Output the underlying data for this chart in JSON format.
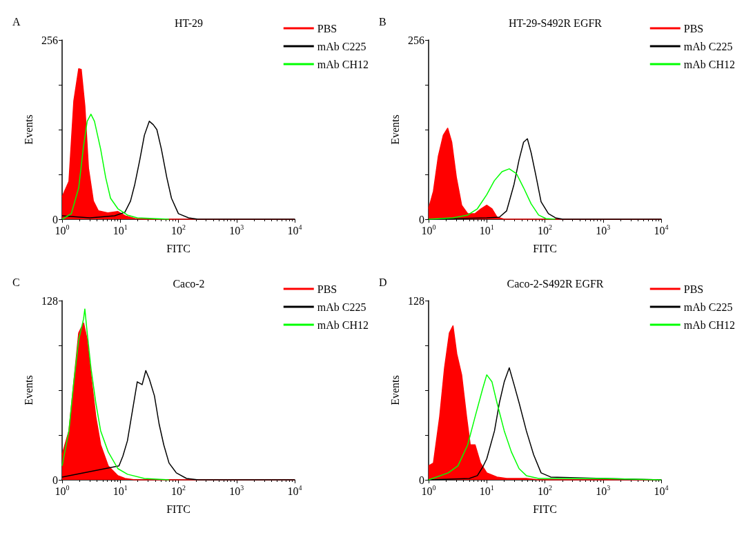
{
  "chart_data": [
    {
      "type": "line",
      "title": "HT-29",
      "annotations": [
        "A"
      ],
      "xlabel": "FITC",
      "ylabel": "Events",
      "log": "x",
      "legend": "top right",
      "marker": "none",
      "line_style": "solid",
      "grid": false,
      "xlim": [
        1,
        10000
      ],
      "xticks": [
        {
          "value": 1,
          "label": "10$^{0}$"
        },
        {
          "value": 10,
          "label": "10$^{1}$"
        },
        {
          "value": 100,
          "label": "10$^{2}$"
        },
        {
          "value": 1000,
          "label": "10$^{3}$"
        },
        {
          "value": 10000,
          "label": "10$^{4}$"
        }
      ],
      "ylim": [
        0,
        256
      ],
      "yticks": [
        0,
        {
          "value": 64,
          "label": null
        },
        {
          "value": 128,
          "label": null
        },
        {
          "value": 192,
          "label": null
        },
        256
      ],
      "series": [
        {
          "name": "PBS",
          "type": "area",
          "color": "#ff0000",
          "x": [
            1,
            1.31,
            1.59,
            1.93,
            2.13,
            2.46,
            2.84,
            3.45,
            4.2,
            6.2,
            9.1,
            12.1,
            17.8,
            26,
            10000
          ],
          "values": [
            32,
            54,
            169,
            215,
            214,
            162,
            73,
            26,
            12,
            9,
            11,
            5,
            1,
            0,
            0
          ]
        },
        {
          "name": "mAb C225",
          "color": "#000000",
          "x": [
            1,
            3,
            8,
            12,
            15,
            17.8,
            21.7,
            26,
            31.6,
            37,
            42.6,
            51,
            63,
            76,
            100,
            150,
            220,
            10000
          ],
          "values": [
            5,
            2,
            5,
            10,
            26,
            50,
            85,
            120,
            140,
            135,
            128,
            100,
            60,
            30,
            8,
            2,
            0,
            0
          ]
        },
        {
          "name": "mAb CH12",
          "color": "#00ff00",
          "x": [
            1,
            1.44,
            1.93,
            2.34,
            2.7,
            3.13,
            3.6,
            4.6,
            5.6,
            6.8,
            9.1,
            13.3,
            19.6,
            38,
            69
          ],
          "values": [
            0,
            8,
            45,
            105,
            140,
            150,
            140,
            100,
            60,
            30,
            15,
            6,
            2,
            1,
            0
          ]
        }
      ]
    },
    {
      "type": "line",
      "title": "HT-29-S492R EGFR",
      "annotations": [
        "B"
      ],
      "xlabel": "FITC",
      "ylabel": "Events",
      "log": "x",
      "legend": "top right",
      "marker": "none",
      "line_style": "solid",
      "grid": false,
      "xlim": [
        1,
        10000
      ],
      "xticks": [
        {
          "value": 1,
          "label": "10$^{0}$"
        },
        {
          "value": 10,
          "label": "10$^{1}$"
        },
        {
          "value": 100,
          "label": "10$^{2}$"
        },
        {
          "value": 1000,
          "label": "10$^{3}$"
        },
        {
          "value": 10000,
          "label": "10$^{4}$"
        }
      ],
      "ylim": [
        0,
        256
      ],
      "yticks": [
        0,
        {
          "value": 64,
          "label": null
        },
        {
          "value": 128,
          "label": null
        },
        {
          "value": 192,
          "label": null
        },
        256
      ],
      "series": [
        {
          "name": "PBS",
          "type": "area",
          "color": "#ff0000",
          "x": [
            1,
            1.21,
            1.47,
            1.79,
            2.13,
            2.5,
            3,
            3.7,
            4.7,
            6.3,
            8,
            10,
            12.3,
            15,
            20,
            10000
          ],
          "values": [
            15,
            40,
            90,
            120,
            130,
            110,
            60,
            20,
            8,
            8,
            15,
            20,
            15,
            3,
            0,
            0
          ]
        },
        {
          "name": "mAb C225",
          "color": "#000000",
          "x": [
            1,
            10,
            16.5,
            22,
            29.5,
            36,
            43,
            50,
            58,
            71,
            86,
            115,
            152,
            205,
            10000
          ],
          "values": [
            0,
            2,
            3,
            12,
            50,
            85,
            110,
            115,
            95,
            60,
            25,
            8,
            2,
            0,
            0
          ]
        },
        {
          "name": "mAb CH12",
          "color": "#00ff00",
          "x": [
            1,
            2.6,
            4.7,
            6.9,
            10,
            13.5,
            18.3,
            24.4,
            32.5,
            43,
            58,
            78,
            104,
            152
          ],
          "values": [
            0,
            2,
            6,
            15,
            35,
            55,
            68,
            72,
            65,
            45,
            22,
            6,
            1,
            0
          ]
        }
      ]
    },
    {
      "type": "line",
      "title": "Caco-2",
      "annotations": [
        "C"
      ],
      "xlabel": "FITC",
      "ylabel": "Events",
      "log": "x",
      "legend": "top right",
      "marker": "none",
      "line_style": "solid",
      "grid": false,
      "xlim": [
        1,
        10000
      ],
      "xticks": [
        {
          "value": 1,
          "label": "10$^{0}$"
        },
        {
          "value": 10,
          "label": "10$^{1}$"
        },
        {
          "value": 100,
          "label": "10$^{2}$"
        },
        {
          "value": 1000,
          "label": "10$^{3}$"
        },
        {
          "value": 10000,
          "label": "10$^{4}$"
        }
      ],
      "ylim": [
        0,
        128
      ],
      "yticks": [
        0,
        {
          "value": 32,
          "label": null
        },
        {
          "value": 64,
          "label": null
        },
        {
          "value": 96,
          "label": null
        },
        128
      ],
      "series": [
        {
          "name": "PBS",
          "type": "area",
          "color": "#ff0000",
          "x": [
            1,
            1.31,
            1.59,
            1.93,
            2.34,
            2.7,
            3.13,
            3.8,
            4.6,
            6.2,
            9.1,
            12.1,
            17.8,
            10000
          ],
          "values": [
            18,
            35,
            70,
            105,
            112,
            100,
            75,
            45,
            25,
            10,
            3,
            1,
            0,
            0
          ]
        },
        {
          "name": "mAb C225",
          "color": "#000000",
          "x": [
            1,
            9.5,
            11.1,
            13.3,
            16.3,
            19.6,
            23.8,
            27.5,
            31.6,
            38.7,
            46.5,
            56,
            69,
            92,
            138,
            220,
            10000
          ],
          "values": [
            2,
            10,
            17,
            28,
            50,
            70,
            68,
            78,
            72,
            60,
            40,
            25,
            12,
            5,
            1,
            0,
            0
          ]
        },
        {
          "name": "mAb CH12",
          "color": "#00ff00",
          "x": [
            1,
            1.31,
            1.59,
            1.93,
            2.34,
            2.46,
            2.7,
            3.13,
            3.8,
            4.6,
            6.2,
            9.1,
            13.3,
            26,
            69
          ],
          "values": [
            10,
            35,
            70,
            100,
            115,
            122,
            105,
            80,
            55,
            35,
            20,
            8,
            4,
            1,
            0
          ]
        }
      ]
    },
    {
      "type": "line",
      "title": "Caco-2-S492R EGFR",
      "annotations": [
        "D"
      ],
      "xlabel": "FITC",
      "ylabel": "Events",
      "log": "x",
      "legend": "top right",
      "marker": "none",
      "line_style": "solid",
      "grid": false,
      "xlim": [
        1,
        10000
      ],
      "xticks": [
        {
          "value": 1,
          "label": "10$^{0}$"
        },
        {
          "value": 10,
          "label": "10$^{1}$"
        },
        {
          "value": 100,
          "label": "10$^{2}$"
        },
        {
          "value": 1000,
          "label": "10$^{3}$"
        },
        {
          "value": 10000,
          "label": "10$^{4}$"
        }
      ],
      "ylim": [
        0,
        128
      ],
      "yticks": [
        0,
        {
          "value": 32,
          "label": null
        },
        {
          "value": 64,
          "label": null
        },
        {
          "value": 96,
          "label": null
        },
        128
      ],
      "series": [
        {
          "name": "PBS",
          "type": "area",
          "color": "#ff0000",
          "x": [
            1,
            1.21,
            1.55,
            1.88,
            2.28,
            2.63,
            3.05,
            3.7,
            4.5,
            5.2,
            6.3,
            7.8,
            10,
            15,
            22,
            48,
            78,
            10000
          ],
          "values": [
            10,
            12,
            45,
            80,
            105,
            110,
            90,
            75,
            45,
            25,
            25,
            12,
            5,
            2,
            1,
            1,
            0,
            0
          ]
        },
        {
          "name": "mAb C225",
          "color": "#000000",
          "x": [
            1,
            5,
            6.9,
            8.5,
            10,
            13.6,
            16.5,
            20,
            24.4,
            29.5,
            36,
            48,
            64,
            86,
            126,
            1000,
            10000
          ],
          "values": [
            0,
            1,
            3,
            9,
            15,
            35,
            55,
            70,
            80,
            68,
            55,
            35,
            18,
            5,
            2,
            1,
            0
          ]
        },
        {
          "name": "mAb CH12",
          "color": "#00ff00",
          "x": [
            1,
            2.17,
            3.2,
            4.7,
            6.3,
            8.5,
            10,
            12.3,
            15,
            20,
            26.5,
            36,
            48,
            78,
            1000,
            10000
          ],
          "values": [
            0,
            5,
            10,
            25,
            45,
            65,
            75,
            70,
            55,
            35,
            20,
            8,
            3,
            1,
            1,
            0
          ]
        }
      ]
    }
  ]
}
